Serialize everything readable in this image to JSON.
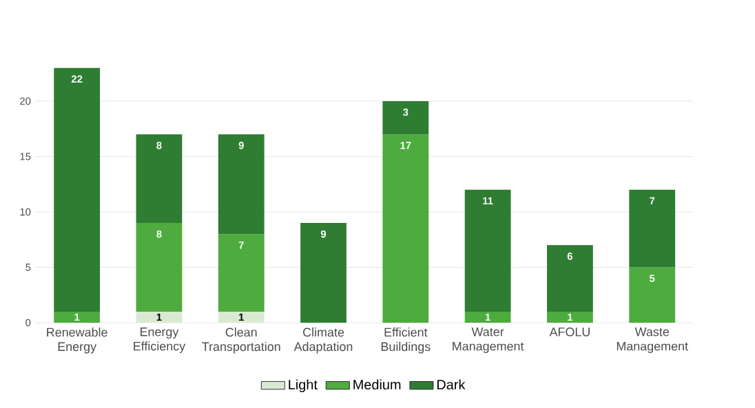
{
  "chart_data": {
    "type": "bar",
    "stacked": true,
    "categories": [
      "Renewable Energy",
      "Energy Efficiency",
      "Clean Transportation",
      "Climate Adaptation",
      "Efficient Buildings",
      "Water Management",
      "AFOLU",
      "Waste Management"
    ],
    "series": [
      {
        "name": "Light",
        "color": "#d9ead3",
        "values": [
          null,
          1,
          1,
          null,
          null,
          null,
          null,
          null
        ]
      },
      {
        "name": "Medium",
        "color": "#4eab3e",
        "values": [
          1,
          8,
          7,
          null,
          17,
          1,
          1,
          5
        ]
      },
      {
        "name": "Dark",
        "color": "#2e7d32",
        "values": [
          22,
          8,
          9,
          9,
          3,
          11,
          6,
          7
        ]
      }
    ],
    "ylim": [
      0,
      23
    ],
    "yticks": [
      0,
      5,
      10,
      15,
      20
    ],
    "grid": "y",
    "legend": "bottom",
    "data_labels": true
  }
}
